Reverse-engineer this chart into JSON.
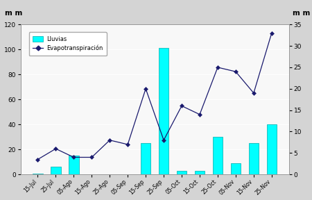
{
  "categories": [
    "15-Jul",
    "25-Jul",
    "05-Ago",
    "15-Ago",
    "25-Ago",
    "05-Sep",
    "15-Sep",
    "25-Sep",
    "05-Oct",
    "15-Oct",
    "25-Oct",
    "05-Nov",
    "15-Nov",
    "25-Nov"
  ],
  "lluvias": [
    0.5,
    6,
    15,
    0,
    0,
    0,
    25,
    101,
    3,
    3,
    30,
    9,
    25,
    40
  ],
  "evapotranspiracion": [
    3.5,
    6,
    4,
    4,
    8,
    7,
    20,
    8,
    16,
    14,
    25,
    24,
    19,
    33
  ],
  "bar_color": "#00FFFF",
  "bar_edgecolor": "#00AAAA",
  "line_color": "#1a1a6e",
  "left_ylim": [
    0,
    120
  ],
  "right_ylim": [
    0,
    35
  ],
  "left_ylabel": "m m",
  "right_ylabel": "m m",
  "left_yticks": [
    0,
    20,
    40,
    60,
    80,
    100,
    120
  ],
  "right_yticks": [
    0,
    5,
    10,
    15,
    20,
    25,
    30,
    35
  ],
  "legend_lluvias": "Lluvias",
  "legend_evapo": "Evapotranspiración",
  "fig_bg": "#d4d4d4",
  "plot_bg": "#f8f8f8"
}
